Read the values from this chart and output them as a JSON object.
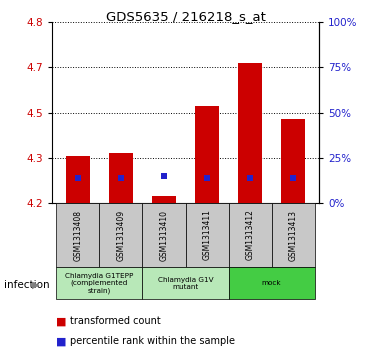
{
  "title": "GDS5635 / 216218_s_at",
  "samples": [
    "GSM1313408",
    "GSM1313409",
    "GSM1313410",
    "GSM1313411",
    "GSM1313412",
    "GSM1313413"
  ],
  "red_bar_tops": [
    4.355,
    4.365,
    4.225,
    4.52,
    4.665,
    4.48
  ],
  "blue_square_vals": [
    4.285,
    4.285,
    4.29,
    4.285,
    4.285,
    4.285
  ],
  "y_min": 4.2,
  "y_max": 4.8,
  "y_ticks": [
    4.2,
    4.35,
    4.5,
    4.65,
    4.8
  ],
  "y_right_ticks": [
    0,
    25,
    50,
    75,
    100
  ],
  "bar_color": "#cc0000",
  "blue_color": "#2222cc",
  "bar_width": 0.55,
  "tick_label_color_left": "#cc0000",
  "tick_label_color_right": "#2222cc",
  "infection_label": "infection",
  "legend_red": "transformed count",
  "legend_blue": "percentile rank within the sample",
  "dotted_line_color": "black",
  "sample_box_color": "#c8c8c8",
  "group_extents": [
    [
      0,
      1,
      "Chlamydia G1TEPP\n(complemented\nstrain)",
      "#b8e8b8"
    ],
    [
      2,
      3,
      "Chlamydia G1V\nmutant",
      "#b8e8b8"
    ],
    [
      4,
      5,
      "mock",
      "#44cc44"
    ]
  ]
}
